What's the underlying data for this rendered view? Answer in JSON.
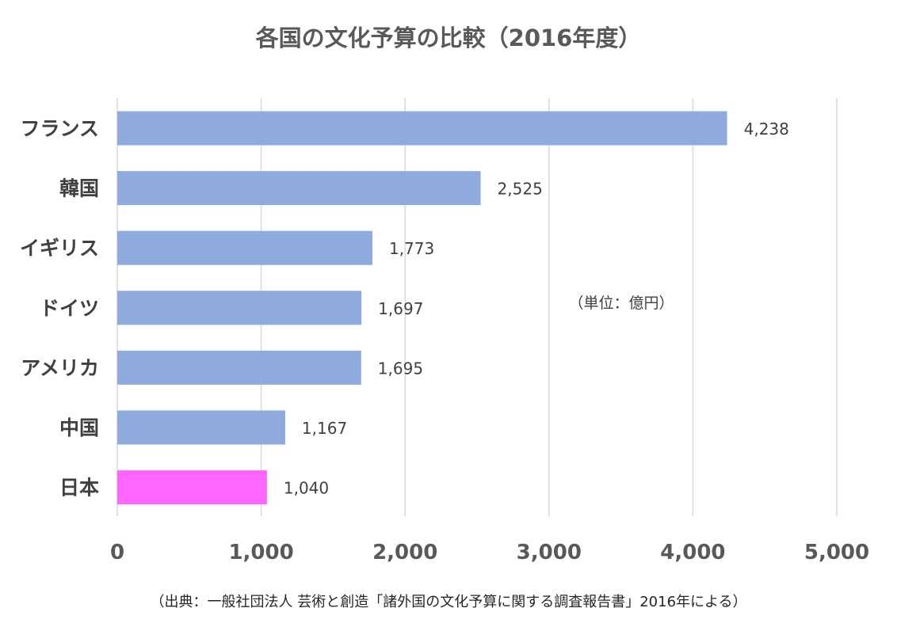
{
  "chart_data": {
    "type": "bar",
    "orientation": "horizontal",
    "title": "各国の文化予算の比較（2016年度）",
    "unit_note": "（単位：億円）",
    "source": "（出典：一般社団法人 芸術と創造「諸外国の文化予算に関する調査報告書」2016年による）",
    "categories": [
      "フランス",
      "韓国",
      "イギリス",
      "ドイツ",
      "アメリカ",
      "中国",
      "日本"
    ],
    "values": [
      4238,
      2525,
      1773,
      1697,
      1695,
      1167,
      1040
    ],
    "value_labels": [
      "4,238",
      "2,525",
      "1,773",
      "1,697",
      "1,695",
      "1,167",
      "1,040"
    ],
    "xlim": [
      0,
      5000
    ],
    "x_ticks": [
      0,
      1000,
      2000,
      3000,
      4000,
      5000
    ],
    "x_tick_labels": [
      "0",
      "1,000",
      "2,000",
      "3,000",
      "4,000",
      "5,000"
    ],
    "grid": true,
    "legend": "none",
    "colors": {
      "bar": "#8faadc",
      "highlight": "#ff66ff",
      "highlight_category": "日本"
    }
  }
}
